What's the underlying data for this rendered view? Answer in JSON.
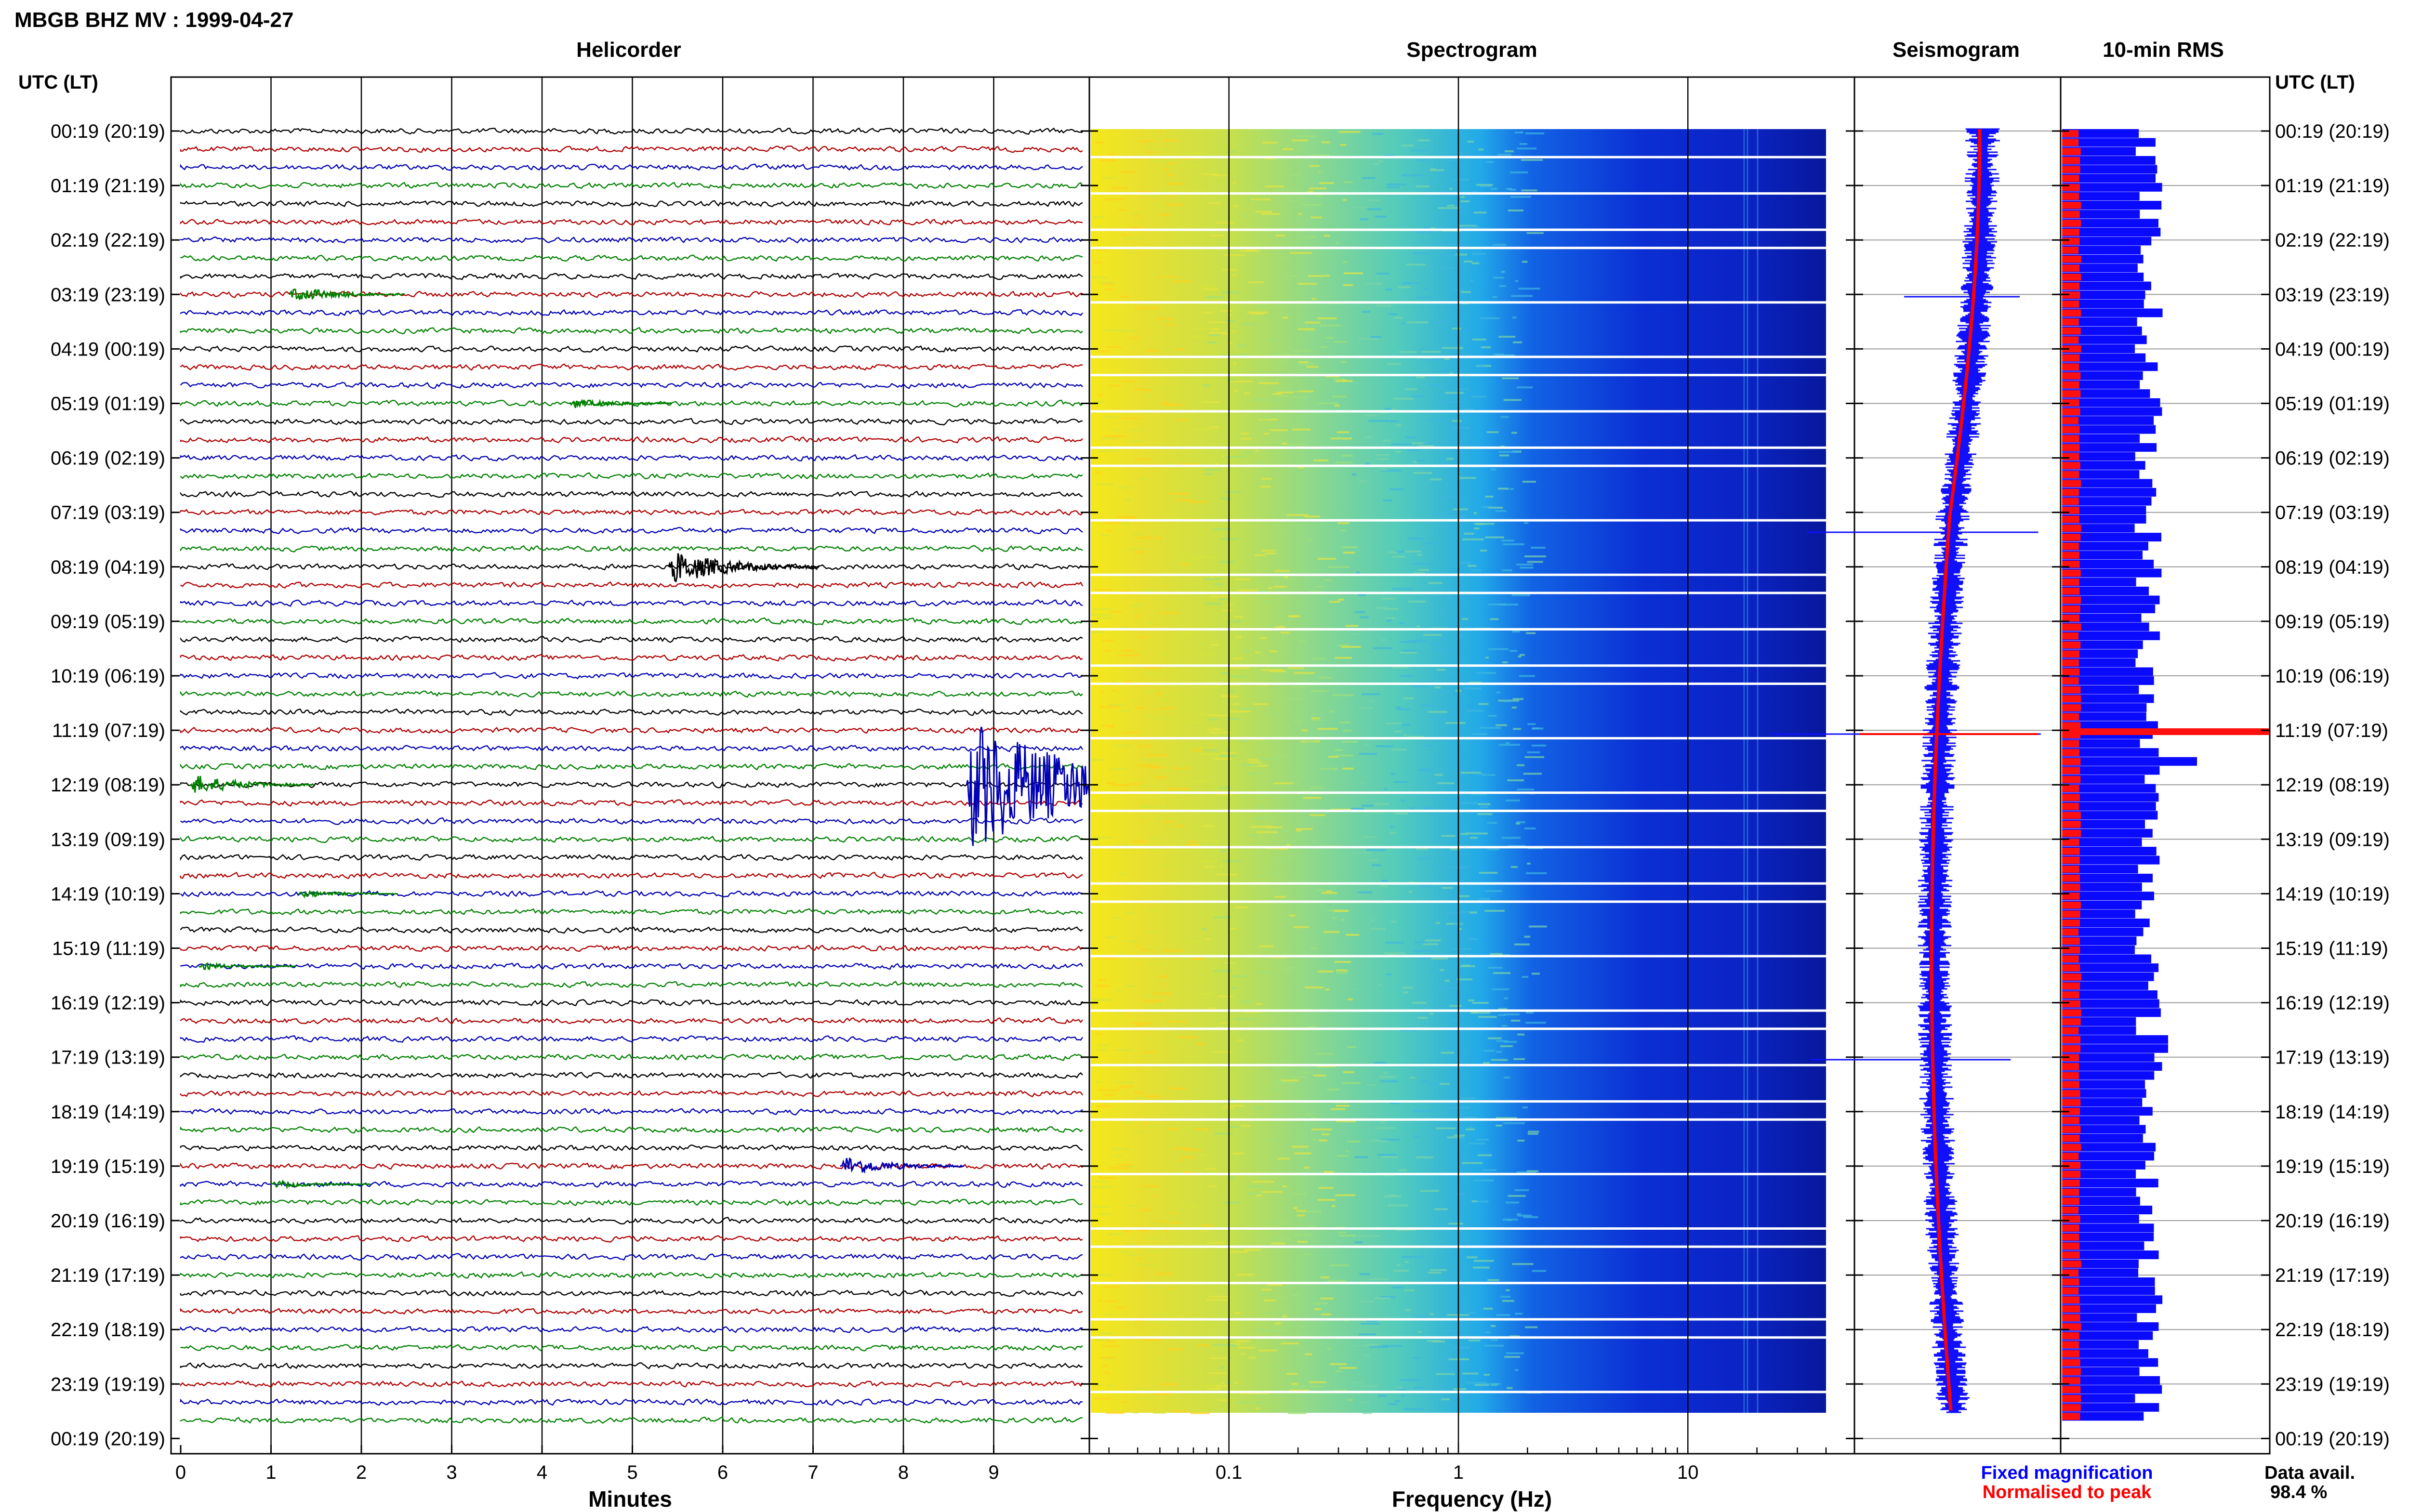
{
  "chart_data": {
    "type": "helicorder",
    "title": "MBGB BHZ MV : 1999-04-27",
    "panels": {
      "helicorder": {
        "title": "Helicorder",
        "xlabel": "Minutes",
        "xticks": [
          "0",
          "1",
          "2",
          "3",
          "4",
          "5",
          "6",
          "7",
          "8",
          "9"
        ],
        "xlim": [
          0,
          10
        ],
        "row_count": 72,
        "trace_colors": [
          "#000000",
          "#b00000",
          "#0000b4",
          "#008000"
        ],
        "events": [
          {
            "row": 9,
            "minute": 1.2,
            "amplitude": 1.2,
            "color": "#008000"
          },
          {
            "row": 15,
            "minute": 4.3,
            "amplitude": 0.7,
            "color": "#008000"
          },
          {
            "row": 24,
            "minute": 5.4,
            "amplitude": 2.5,
            "color": "#000000"
          },
          {
            "row": 36,
            "minute": 0.1,
            "amplitude": 1.5,
            "color": "#008000"
          },
          {
            "row": 36,
            "minute": 8.7,
            "amplitude": 9.0,
            "color": "#0000b4"
          },
          {
            "row": 42,
            "minute": 1.3,
            "amplitude": 0.6,
            "color": "#008000"
          },
          {
            "row": 46,
            "minute": 0.2,
            "amplitude": 0.5,
            "color": "#008000"
          },
          {
            "row": 57,
            "minute": 7.3,
            "amplitude": 1.5,
            "color": "#0000b4"
          },
          {
            "row": 58,
            "minute": 1.0,
            "amplitude": 0.6,
            "color": "#008000"
          }
        ]
      },
      "spectrogram": {
        "title": "Spectrogram",
        "xlabel": "Frequency (Hz)",
        "xscale": "log",
        "xlim": [
          0.025,
          40
        ],
        "xticks": [
          "0.1",
          "1",
          "10"
        ],
        "xtick_values": [
          0.1,
          1,
          10
        ]
      },
      "seismogram": {
        "title": "Seismogram"
      },
      "rms": {
        "title": "10-min RMS"
      }
    },
    "time_axis": {
      "left_header": "UTC (LT)",
      "right_header": "UTC (LT)",
      "labels": [
        "00:19 (20:19)",
        "01:19 (21:19)",
        "02:19 (22:19)",
        "03:19 (23:19)",
        "04:19 (00:19)",
        "05:19 (01:19)",
        "06:19 (02:19)",
        "07:19 (03:19)",
        "08:19 (04:19)",
        "09:19 (05:19)",
        "10:19 (06:19)",
        "11:19 (07:19)",
        "12:19 (08:19)",
        "13:19 (09:19)",
        "14:19 (10:19)",
        "15:19 (11:19)",
        "16:19 (12:19)",
        "17:19 (13:19)",
        "18:19 (14:19)",
        "19:19 (15:19)",
        "20:19 (16:19)",
        "21:19 (17:19)",
        "22:19 (18:19)",
        "23:19 (19:19)",
        "00:19 (20:19)"
      ]
    },
    "legend": {
      "placement": "bottom-right",
      "items": [
        {
          "label": "Fixed magnification",
          "color": "#0000ff"
        },
        {
          "label": "Normalised to peak",
          "color": "#ff0000"
        }
      ]
    },
    "data_availability": {
      "label": "Data avail.",
      "value": "98.4 %"
    }
  }
}
